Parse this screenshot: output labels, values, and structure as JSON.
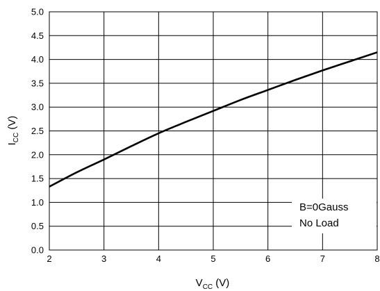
{
  "chart_data": {
    "type": "line",
    "title": "",
    "xlabel": {
      "main": "V",
      "sub": "CC",
      "unit": " (V)"
    },
    "ylabel": {
      "main": "I",
      "sub": "CC",
      "unit": " (V)"
    },
    "xlim": [
      2,
      8
    ],
    "ylim": [
      0,
      5
    ],
    "xticks": [
      2,
      3,
      4,
      5,
      6,
      7,
      8
    ],
    "yticks": [
      0.0,
      0.5,
      1.0,
      1.5,
      2.0,
      2.5,
      3.0,
      3.5,
      4.0,
      4.5,
      5.0
    ],
    "grid": true,
    "legend": "none",
    "series": [
      {
        "x": [
          2.0,
          2.5,
          3.0,
          3.5,
          4.0,
          4.5,
          5.0,
          5.5,
          6.0,
          6.5,
          7.0,
          7.5,
          8.0
        ],
        "y": [
          1.33,
          1.63,
          1.9,
          2.18,
          2.45,
          2.69,
          2.92,
          3.15,
          3.36,
          3.57,
          3.77,
          3.96,
          4.15
        ],
        "color": "#000000"
      }
    ],
    "annotations": [
      "B=0Gauss",
      "No Load"
    ]
  }
}
